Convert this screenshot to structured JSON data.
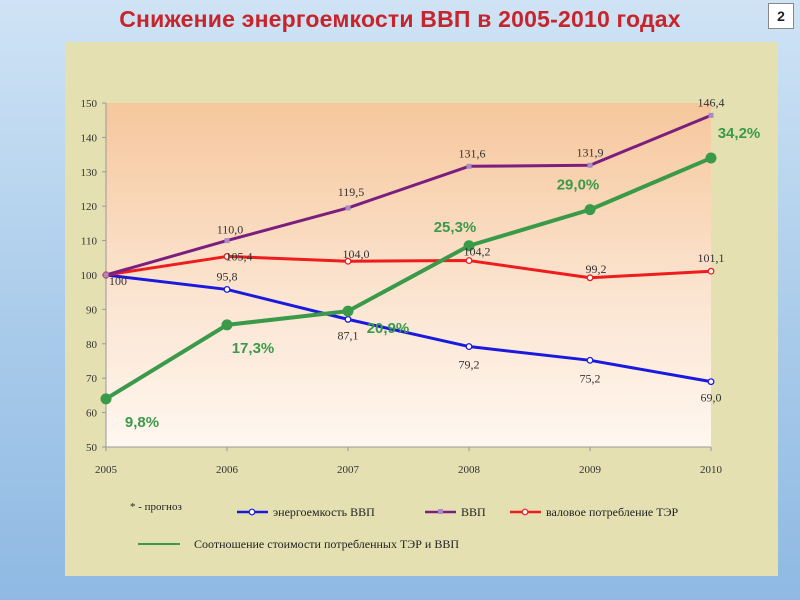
{
  "page": {
    "title": "Снижение энергоемкости ВВП в 2005-2010 годах",
    "slide_number": "2"
  },
  "footnote": "* - прогноз",
  "chart_data": {
    "type": "line",
    "x": [
      "2005",
      "2006",
      "2007",
      "2008",
      "2009",
      "2010"
    ],
    "ylim": [
      50,
      150
    ],
    "yticks": [
      50,
      60,
      70,
      80,
      90,
      100,
      110,
      120,
      130,
      140,
      150
    ],
    "grid": false,
    "legend_position": "bottom",
    "series": [
      {
        "name": "энергоемкость ВВП",
        "color": "#1a1adf",
        "values": [
          100,
          95.8,
          87.1,
          79.2,
          75.2,
          69.0
        ],
        "labels": [
          "100",
          "95,8",
          "87,1",
          "79,2",
          "75,2",
          "69,0"
        ]
      },
      {
        "name": "ВВП",
        "color": "#7b1f7f",
        "values": [
          100,
          110.0,
          119.5,
          131.6,
          131.9,
          146.4
        ],
        "labels": [
          "",
          "110,0",
          "119,5",
          "131,6",
          "131,9",
          "146,4"
        ]
      },
      {
        "name": "валовое потребление ТЭР",
        "color": "#ee1c1c",
        "values": [
          100,
          105.4,
          104.0,
          104.2,
          99.2,
          101.1
        ],
        "labels": [
          "",
          "105,4",
          "104,0",
          "104,2",
          "99,2",
          "101,1"
        ]
      },
      {
        "name": "Соотношение стоимости потребленных ТЭР и ВВП",
        "color": "#3a9a4a",
        "values": [
          64,
          85.5,
          89.5,
          108.5,
          119,
          134
        ],
        "labels": [
          "9,8%",
          "17,3%",
          "20,9%",
          "25,3%",
          "29,0%",
          "34,2%"
        ]
      }
    ]
  }
}
